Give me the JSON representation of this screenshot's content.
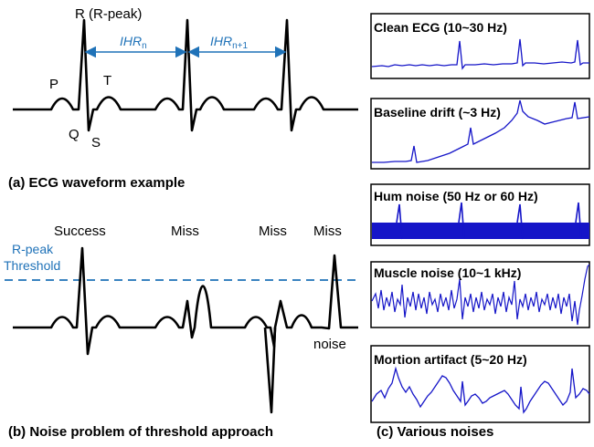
{
  "colors": {
    "ecg": "#000000",
    "accent": "#1f72b8",
    "noise_trace": "#1515c8"
  },
  "panel_a": {
    "r_label": "R (R-peak)",
    "p_label": "P",
    "q_label": "Q",
    "s_label": "S",
    "t_label": "T",
    "ihr_n": "IHR",
    "ihr_n_sub": "n",
    "ihr_n1": "IHR",
    "ihr_n1_sub": "n+1",
    "caption": "(a) ECG waveform example"
  },
  "panel_b": {
    "threshold_line1": "R-peak",
    "threshold_line2": "Threshold",
    "results": [
      "Success",
      "Miss",
      "Miss",
      "Miss"
    ],
    "noise_label": "noise",
    "caption": "(b) Noise problem of threshold approach"
  },
  "panel_c": {
    "boxes": [
      {
        "title": "Clean ECG (10~30 Hz)"
      },
      {
        "title": "Baseline drift (~3 Hz)"
      },
      {
        "title": "Hum noise (50 Hz or 60 Hz)"
      },
      {
        "title": "Muscle noise (10~1 kHz)"
      },
      {
        "title": "Mortion artifact (5~20 Hz)"
      }
    ],
    "caption": "(c) Various noises"
  }
}
